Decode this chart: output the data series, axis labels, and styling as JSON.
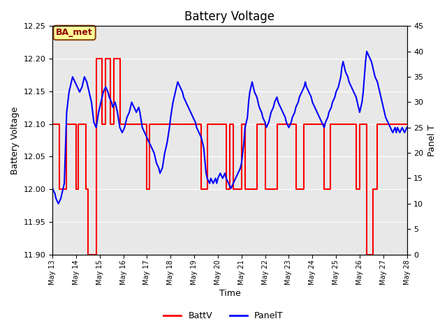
{
  "title": "Battery Voltage",
  "xlabel": "Time",
  "ylabel_left": "Battery Voltage",
  "ylabel_right": "Panel T",
  "ylim_left": [
    11.9,
    12.25
  ],
  "ylim_right": [
    0,
    45
  ],
  "plot_bg_color": "#e8e8e8",
  "annotation_text": "BA_met",
  "annotation_bg": "#ffff99",
  "annotation_border": "#8B4513",
  "batt_color": "#ff0000",
  "panel_color": "#0000ff",
  "batt_segments": [
    [
      13.0,
      12.1
    ],
    [
      13.3,
      12.1
    ],
    [
      13.3,
      12.0
    ],
    [
      13.6,
      12.0
    ],
    [
      13.6,
      12.1
    ],
    [
      14.0,
      12.1
    ],
    [
      14.0,
      12.0
    ],
    [
      14.1,
      12.0
    ],
    [
      14.1,
      12.1
    ],
    [
      14.4,
      12.1
    ],
    [
      14.4,
      12.0
    ],
    [
      14.5,
      12.0
    ],
    [
      14.5,
      11.9
    ],
    [
      14.85,
      11.9
    ],
    [
      14.85,
      12.2
    ],
    [
      15.1,
      12.2
    ],
    [
      15.1,
      12.1
    ],
    [
      15.25,
      12.1
    ],
    [
      15.25,
      12.2
    ],
    [
      15.45,
      12.2
    ],
    [
      15.45,
      12.1
    ],
    [
      15.6,
      12.1
    ],
    [
      15.6,
      12.2
    ],
    [
      15.85,
      12.2
    ],
    [
      15.85,
      12.1
    ],
    [
      17.0,
      12.1
    ],
    [
      17.0,
      12.0
    ],
    [
      17.1,
      12.0
    ],
    [
      17.1,
      12.1
    ],
    [
      19.3,
      12.1
    ],
    [
      19.3,
      12.0
    ],
    [
      19.55,
      12.0
    ],
    [
      19.55,
      12.1
    ],
    [
      20.35,
      12.1
    ],
    [
      20.35,
      12.0
    ],
    [
      20.5,
      12.0
    ],
    [
      20.5,
      12.1
    ],
    [
      20.65,
      12.1
    ],
    [
      20.65,
      12.0
    ],
    [
      21.0,
      12.0
    ],
    [
      21.0,
      12.1
    ],
    [
      21.15,
      12.1
    ],
    [
      21.15,
      12.0
    ],
    [
      21.65,
      12.0
    ],
    [
      21.65,
      12.1
    ],
    [
      22.0,
      12.1
    ],
    [
      22.0,
      12.0
    ],
    [
      22.5,
      12.0
    ],
    [
      22.5,
      12.1
    ],
    [
      23.3,
      12.1
    ],
    [
      23.3,
      12.0
    ],
    [
      23.65,
      12.0
    ],
    [
      23.65,
      12.1
    ],
    [
      24.5,
      12.1
    ],
    [
      24.5,
      12.0
    ],
    [
      24.75,
      12.0
    ],
    [
      24.75,
      12.1
    ],
    [
      25.85,
      12.1
    ],
    [
      25.85,
      12.0
    ],
    [
      26.0,
      12.0
    ],
    [
      26.0,
      12.1
    ],
    [
      26.3,
      12.1
    ],
    [
      26.3,
      11.9
    ],
    [
      26.55,
      11.9
    ],
    [
      26.55,
      12.0
    ],
    [
      26.75,
      12.0
    ],
    [
      26.75,
      12.1
    ],
    [
      28.0,
      12.1
    ]
  ],
  "panel_data": [
    [
      13.0,
      13
    ],
    [
      13.1,
      12
    ],
    [
      13.15,
      11
    ],
    [
      13.25,
      10
    ],
    [
      13.35,
      11
    ],
    [
      13.5,
      14
    ],
    [
      13.6,
      28
    ],
    [
      13.7,
      32
    ],
    [
      13.85,
      35
    ],
    [
      13.95,
      34
    ],
    [
      14.05,
      33
    ],
    [
      14.15,
      32
    ],
    [
      14.25,
      33
    ],
    [
      14.35,
      35
    ],
    [
      14.45,
      34
    ],
    [
      14.55,
      32
    ],
    [
      14.65,
      30
    ],
    [
      14.75,
      26
    ],
    [
      14.85,
      25
    ],
    [
      14.95,
      28
    ],
    [
      15.05,
      30
    ],
    [
      15.15,
      32
    ],
    [
      15.25,
      33
    ],
    [
      15.35,
      32
    ],
    [
      15.4,
      31
    ],
    [
      15.5,
      30
    ],
    [
      15.55,
      29
    ],
    [
      15.65,
      30
    ],
    [
      15.75,
      28
    ],
    [
      15.85,
      25
    ],
    [
      15.95,
      24
    ],
    [
      16.05,
      25
    ],
    [
      16.15,
      27
    ],
    [
      16.25,
      28
    ],
    [
      16.35,
      30
    ],
    [
      16.45,
      29
    ],
    [
      16.55,
      28
    ],
    [
      16.65,
      29
    ],
    [
      16.7,
      28
    ],
    [
      16.8,
      25
    ],
    [
      16.9,
      24
    ],
    [
      17.0,
      23
    ],
    [
      17.1,
      22
    ],
    [
      17.2,
      21
    ],
    [
      17.3,
      20
    ],
    [
      17.4,
      18
    ],
    [
      17.5,
      17
    ],
    [
      17.55,
      16
    ],
    [
      17.65,
      17
    ],
    [
      17.75,
      20
    ],
    [
      17.85,
      22
    ],
    [
      17.95,
      25
    ],
    [
      18.0,
      27
    ],
    [
      18.1,
      30
    ],
    [
      18.2,
      32
    ],
    [
      18.3,
      34
    ],
    [
      18.4,
      33
    ],
    [
      18.5,
      32
    ],
    [
      18.55,
      31
    ],
    [
      18.65,
      30
    ],
    [
      18.75,
      29
    ],
    [
      18.85,
      28
    ],
    [
      18.95,
      27
    ],
    [
      19.05,
      26
    ],
    [
      19.1,
      25
    ],
    [
      19.2,
      24
    ],
    [
      19.3,
      23
    ],
    [
      19.35,
      22
    ],
    [
      19.4,
      21
    ],
    [
      19.5,
      16
    ],
    [
      19.55,
      15
    ],
    [
      19.65,
      14
    ],
    [
      19.7,
      15
    ],
    [
      19.8,
      14
    ],
    [
      19.9,
      15
    ],
    [
      19.95,
      14
    ],
    [
      20.0,
      15
    ],
    [
      20.1,
      16
    ],
    [
      20.2,
      15
    ],
    [
      20.3,
      16
    ],
    [
      20.35,
      15
    ],
    [
      20.45,
      14
    ],
    [
      20.55,
      13
    ],
    [
      20.65,
      14
    ],
    [
      20.75,
      15
    ],
    [
      20.85,
      16
    ],
    [
      20.95,
      17
    ],
    [
      21.0,
      18
    ],
    [
      21.05,
      20
    ],
    [
      21.1,
      22
    ],
    [
      21.15,
      25
    ],
    [
      21.25,
      27
    ],
    [
      21.3,
      30
    ],
    [
      21.35,
      32
    ],
    [
      21.4,
      33
    ],
    [
      21.45,
      34
    ],
    [
      21.5,
      33
    ],
    [
      21.55,
      32
    ],
    [
      21.65,
      31
    ],
    [
      21.7,
      30
    ],
    [
      21.75,
      29
    ],
    [
      21.85,
      28
    ],
    [
      21.9,
      27
    ],
    [
      22.0,
      26
    ],
    [
      22.05,
      25
    ],
    [
      22.15,
      26
    ],
    [
      22.25,
      28
    ],
    [
      22.35,
      29
    ],
    [
      22.4,
      30
    ],
    [
      22.5,
      31
    ],
    [
      22.55,
      30
    ],
    [
      22.65,
      29
    ],
    [
      22.75,
      28
    ],
    [
      22.85,
      27
    ],
    [
      22.9,
      26
    ],
    [
      23.0,
      25
    ],
    [
      23.1,
      26
    ],
    [
      23.15,
      27
    ],
    [
      23.25,
      28
    ],
    [
      23.3,
      29
    ],
    [
      23.4,
      30
    ],
    [
      23.45,
      31
    ],
    [
      23.55,
      32
    ],
    [
      23.65,
      33
    ],
    [
      23.7,
      34
    ],
    [
      23.75,
      33
    ],
    [
      23.85,
      32
    ],
    [
      23.95,
      31
    ],
    [
      24.0,
      30
    ],
    [
      24.1,
      29
    ],
    [
      24.2,
      28
    ],
    [
      24.3,
      27
    ],
    [
      24.4,
      26
    ],
    [
      24.5,
      25
    ],
    [
      24.55,
      26
    ],
    [
      24.65,
      27
    ],
    [
      24.7,
      28
    ],
    [
      24.8,
      29
    ],
    [
      24.85,
      30
    ],
    [
      24.95,
      31
    ],
    [
      25.0,
      32
    ],
    [
      25.1,
      33
    ],
    [
      25.2,
      35
    ],
    [
      25.25,
      37
    ],
    [
      25.3,
      38
    ],
    [
      25.35,
      37
    ],
    [
      25.4,
      36
    ],
    [
      25.5,
      35
    ],
    [
      25.55,
      34
    ],
    [
      25.65,
      33
    ],
    [
      25.75,
      32
    ],
    [
      25.85,
      31
    ],
    [
      25.9,
      30
    ],
    [
      25.95,
      29
    ],
    [
      26.0,
      28
    ],
    [
      26.05,
      29
    ],
    [
      26.1,
      30
    ],
    [
      26.15,
      32
    ],
    [
      26.2,
      35
    ],
    [
      26.25,
      38
    ],
    [
      26.3,
      40
    ],
    [
      26.4,
      39
    ],
    [
      26.5,
      38
    ],
    [
      26.55,
      37
    ],
    [
      26.6,
      36
    ],
    [
      26.65,
      35
    ],
    [
      26.75,
      34
    ],
    [
      26.8,
      33
    ],
    [
      26.85,
      32
    ],
    [
      26.9,
      31
    ],
    [
      26.95,
      30
    ],
    [
      27.0,
      29
    ],
    [
      27.05,
      28
    ],
    [
      27.1,
      27
    ],
    [
      27.2,
      26
    ],
    [
      27.3,
      25
    ],
    [
      27.4,
      24
    ],
    [
      27.5,
      25
    ],
    [
      27.55,
      24
    ],
    [
      27.6,
      25
    ],
    [
      27.7,
      24
    ],
    [
      27.8,
      25
    ],
    [
      27.9,
      24
    ],
    [
      28.0,
      25
    ]
  ],
  "yticks_left": [
    11.9,
    11.95,
    12.0,
    12.05,
    12.1,
    12.15,
    12.2,
    12.25
  ],
  "yticks_right": [
    0,
    5,
    10,
    15,
    20,
    25,
    30,
    35,
    40,
    45
  ],
  "xtick_days": [
    13,
    14,
    15,
    16,
    17,
    18,
    19,
    20,
    21,
    22,
    23,
    24,
    25,
    26,
    27,
    28
  ],
  "grid_color": "#ffffff",
  "title_fontsize": 12,
  "label_fontsize": 9,
  "tick_fontsize": 8
}
